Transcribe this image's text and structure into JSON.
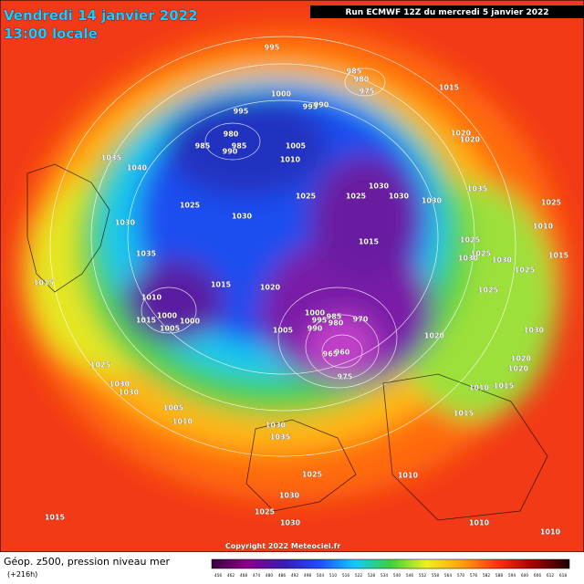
{
  "header": {
    "title_date": "Vendredi 14 janvier 2022",
    "title_time": "13:00 locale",
    "run_info": "Run ECMWF 12Z du mercredi 5 janvier 2022"
  },
  "footer": {
    "caption": "Géop. z500, pression niveau mer",
    "horizon": "(+216h)",
    "copyright": "Copyright 2022 Meteociel.fr"
  },
  "colorbar": {
    "ticks": [
      456,
      462,
      468,
      474,
      480,
      486,
      492,
      498,
      504,
      510,
      516,
      522,
      528,
      534,
      540,
      546,
      552,
      558,
      564,
      570,
      576,
      582,
      588,
      594,
      600,
      606,
      612,
      618
    ]
  },
  "isobar_labels": [
    995,
    985,
    980,
    975,
    1015,
    1000,
    995,
    995,
    990,
    980,
    985,
    990,
    985,
    1005,
    1010,
    1020,
    1020,
    1035,
    1040,
    1025,
    1030,
    1025,
    1030,
    1030,
    1035,
    1025,
    1025,
    1030,
    1030,
    1015,
    1025,
    1025,
    1030,
    1030,
    1010,
    1025,
    1015,
    1035,
    1015,
    1015,
    1020,
    1010,
    1000,
    1000,
    1015,
    1005,
    1000,
    995,
    985,
    980,
    990,
    970,
    1005,
    965,
    960,
    975,
    1020,
    1025,
    1030,
    1020,
    1020,
    1025,
    1030,
    1030,
    1015,
    1010,
    1015,
    1005,
    1010,
    1030,
    1035,
    1025,
    1030,
    1025,
    1030,
    1010,
    1015,
    1010,
    1010
  ]
}
